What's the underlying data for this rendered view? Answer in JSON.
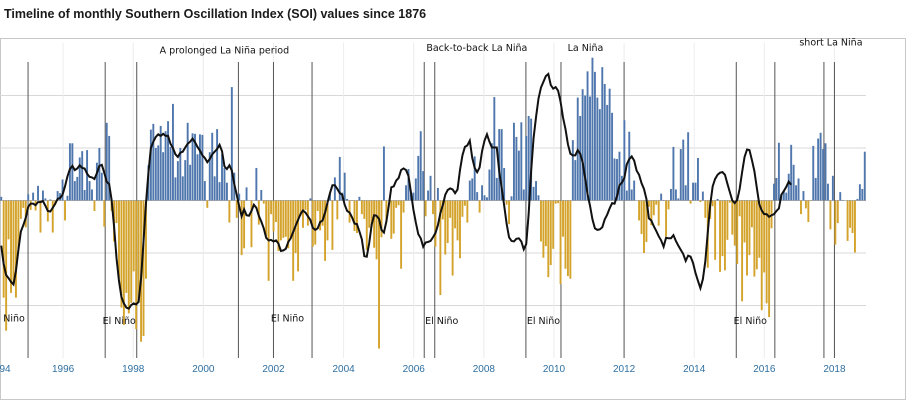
{
  "title": "Timeline of monthly Southern Oscillation Index (SOI) values since 1876",
  "colors": {
    "positive": "#4f77ad",
    "negative": "#d4a32b",
    "line": "#111111",
    "vline": "#555555",
    "grid": "#d8d8d8",
    "tick_text": "#2e6fa1"
  },
  "chart_data": {
    "type": "bar",
    "title": "Timeline of monthly Southern Oscillation Index (SOI) values since 1876",
    "xlabel": "",
    "ylabel": "",
    "xlim": [
      1994.2,
      2018.9
    ],
    "ylim": [
      -30,
      30
    ],
    "grid": true,
    "x_ticks": [
      "1994",
      "1996",
      "1998",
      "2000",
      "2002",
      "2004",
      "2006",
      "2008",
      "2010",
      "2012",
      "2014",
      "2016",
      "2018"
    ],
    "x_tick_labels": [
      "94",
      "1996",
      "1998",
      "2000",
      "2002",
      "2004",
      "2006",
      "2008",
      "2010",
      "2012",
      "2014",
      "2016",
      "2018"
    ],
    "series": [
      {
        "kind": "monthly_bars",
        "values": [
          0.7,
          -18.5,
          -24.8,
          -7.4,
          -17.6,
          -15.9,
          -18.5,
          -9.5,
          -3.5,
          -1.4,
          -5.1,
          1.2,
          -1.8,
          1.5,
          -1.9,
          2.8,
          -6.1,
          1.9,
          0.4,
          -4.0,
          0.2,
          -6.1,
          -0.9,
          1.8,
          1.4,
          4.0,
          -3.8,
          0.9,
          10.9,
          10.9,
          3.7,
          4.5,
          8.2,
          9.4,
          2.0,
          9.6,
          3.7,
          2.1,
          -2.0,
          7.2,
          10.0,
          5.3,
          -5.0,
          14.8,
          12.3,
          -2.0,
          -7.8,
          -4.3,
          -14.8,
          -20.4,
          -23.7,
          -17.6,
          -21.5,
          -19.5,
          -13.5,
          -24.5,
          -19.5,
          -26.9,
          -25.8,
          -14.9,
          6.7,
          13.5,
          14.6,
          10.0,
          10.5,
          14.2,
          9.2,
          13.2,
          15.1,
          10.2,
          18.4,
          4.4,
          7.5,
          10.0,
          4.6,
          7.7,
          14.8,
          6.8,
          12.8,
          12.7,
          8.8,
          12.6,
          12.5,
          3.7,
          -1.4,
          9.2,
          12.9,
          4.6,
          13.6,
          3.5,
          8.8,
          6.2,
          3.4,
          -4.2,
          21.6,
          5.3,
          -3.3,
          1.3,
          -10.4,
          -9.1,
          2.5,
          0.0,
          -8.9,
          0.0,
          6.2,
          -4.6,
          2.0,
          -0.6,
          -6.7,
          -15.3,
          -2.6,
          -5.9,
          -4.1,
          -9.6,
          -7.6,
          -7.1,
          -6.9,
          -9.1,
          -7.0,
          -15.3,
          -10.0,
          -13.5,
          -2.9,
          -5.2,
          -1.8,
          -4.8,
          0.4,
          -8.8,
          -8.4,
          -2.0,
          -5.7,
          -4.8,
          -11.5,
          -7.6,
          1.5,
          -9.4,
          4.4,
          -3.6,
          8.3,
          1.5,
          5.3,
          0.3,
          -4.2,
          -0.1,
          -5.8,
          -6.2,
          0.7,
          -2.6,
          -3.5,
          -9.4,
          -5.2,
          -5.0,
          -9.0,
          -11.2,
          -28.2,
          -7.0,
          10.3,
          -4.1,
          0.0,
          -7.3,
          -6.3,
          -1.4,
          -0.9,
          -13.0,
          -2.3,
          2.9,
          6.0,
          1.6,
          1.5,
          4.2,
          8.5,
          13.2,
          5.6,
          -3.0,
          1.9,
          4.7,
          -2.6,
          -8.8,
          2.4,
          -18.0,
          -3.6,
          -10.3,
          -8.1,
          -3.3,
          -14.3,
          -5.3,
          -7.6,
          -11.0,
          -3.1,
          -1.0,
          -4.2,
          3.8,
          4.2,
          8.4,
          1.6,
          -2.3,
          2.9,
          1.0,
          0.6,
          5.9,
          10.9,
          19.7,
          4.3,
          13.6,
          13.6,
          6.2,
          -0.8,
          -4.5,
          0.8,
          14.8,
          12.1,
          9.5,
          14.9,
          2.1,
          12.3,
          16.1,
          15.6,
          2.6,
          3.7,
          1.0,
          -7.8,
          -10.9,
          -8.7,
          -14.6,
          -12.3,
          -9.2,
          -0.6,
          -0.5,
          -15.9,
          -6.9,
          -13.0,
          -14.4,
          -14.9,
          11.5,
          7.7,
          19.6,
          16.1,
          21.2,
          20.0,
          24.6,
          19.8,
          27.2,
          24.5,
          19.6,
          17.4,
          25.4,
          22.2,
          18.2,
          21.3,
          16.7,
          8.0,
          7.9,
          9.3,
          4.7,
          15.3,
          1.9,
          13.1,
          2.1,
          3.8,
          0.0,
          -3.8,
          -6.4,
          -10.0,
          -7.9,
          -1.2,
          -4.7,
          -2.8,
          -0.8,
          -4.8,
          1.3,
          0.1,
          -6.9,
          -1.7,
          2.2,
          10.2,
          2.1,
          0.4,
          9.8,
          11.6,
          2.9,
          13.0,
          -0.6,
          3.4,
          3.4,
          8.1,
          -0.3,
          1.7,
          -3.3,
          -12.8,
          -3.5,
          -1.1,
          -11.3,
          0.3,
          -13.6,
          -10.6,
          -13.3,
          -7.5,
          -0.4,
          -6.5,
          -8.6,
          -12.1,
          -3.0,
          -19.2,
          -8.0,
          -14.3,
          -10.4,
          -5.1,
          -14.5,
          -13.1,
          -10.9,
          -20.9,
          -13.7,
          -19.6,
          -22.2,
          -5.3,
          3.2,
          4.3,
          11.0,
          1.1,
          1.8,
          1.5,
          5.1,
          10.6,
          6.8,
          2.9,
          4.2,
          -2.6,
          1.8,
          -1.5,
          -4.1,
          -0.1,
          10.4,
          4.3,
          11.8,
          12.9,
          9.8,
          10.9,
          3.2,
          -5.5,
          4.7,
          -8.4,
          -4.3,
          1.6,
          0.1,
          0.0,
          -7.7,
          -5.2,
          -6.2,
          -9.9,
          0.3,
          3.1,
          2.2,
          9.3
        ]
      },
      {
        "kind": "smoothed_line",
        "values": [
          -8.6,
          -12.1,
          -14.2,
          -14.8,
          -15.5,
          -16.0,
          -13.4,
          -9.4,
          -5.9,
          -4.7,
          -3.3,
          -1.2,
          -0.6,
          -0.6,
          -0.9,
          -0.3,
          -0.3,
          -0.1,
          -1.0,
          -2.0,
          -2.1,
          -1.4,
          -0.6,
          0.3,
          0.5,
          1.1,
          2.7,
          4.6,
          6.0,
          6.6,
          5.8,
          6.1,
          6.7,
          6.2,
          6.1,
          5.1,
          4.5,
          4.4,
          4.1,
          5.2,
          6.6,
          6.8,
          5.3,
          3.6,
          3.1,
          0.1,
          -5.0,
          -11.0,
          -15.3,
          -18.4,
          -19.6,
          -20.4,
          -20.6,
          -19.9,
          -19.6,
          -19.8,
          -19.3,
          -14.8,
          -7.8,
          -0.6,
          5.3,
          10.0,
          11.2,
          12.1,
          12.6,
          12.3,
          12.7,
          12.3,
          12.3,
          10.8,
          10.0,
          8.8,
          8.3,
          9.1,
          9.3,
          10.1,
          10.8,
          11.2,
          11.8,
          11.1,
          10.2,
          9.5,
          8.6,
          8.1,
          7.3,
          7.9,
          8.8,
          9.3,
          9.8,
          10.6,
          9.4,
          6.5,
          6.0,
          6.7,
          5.7,
          3.1,
          1.1,
          -1.1,
          -3.0,
          -1.7,
          -2.8,
          -2.9,
          -2.0,
          -0.8,
          -1.4,
          -2.9,
          -4.0,
          -5.3,
          -7.1,
          -7.6,
          -7.5,
          -7.8,
          -7.6,
          -8.2,
          -9.6,
          -9.5,
          -9.2,
          -7.9,
          -7.2,
          -6.0,
          -4.8,
          -3.7,
          -2.6,
          -1.9,
          -2.3,
          -3.0,
          -3.7,
          -5.2,
          -5.6,
          -5.3,
          -4.1,
          -3.8,
          -2.3,
          -0.4,
          1.4,
          2.9,
          2.9,
          2.2,
          1.4,
          1.1,
          -0.8,
          -2.0,
          -2.3,
          -3.2,
          -4.4,
          -4.5,
          -5.9,
          -7.4,
          -10.6,
          -10.7,
          -8.1,
          -4.6,
          -2.8,
          -2.9,
          -3.5,
          -5.6,
          -6.1,
          -4.0,
          -0.9,
          2.5,
          2.7,
          3.8,
          4.3,
          5.8,
          6.1,
          5.8,
          4.7,
          1.6,
          -1.7,
          -4.2,
          -6.4,
          -7.2,
          -8.8,
          -8.0,
          -7.9,
          -7.7,
          -7.0,
          -6.2,
          -4.7,
          -2.4,
          -0.9,
          1.1,
          2.0,
          2.3,
          2.1,
          1.4,
          2.1,
          5.8,
          8.6,
          10.2,
          10.5,
          11.4,
          8.1,
          6.2,
          5.4,
          6.3,
          9.4,
          11.4,
          12.6,
          11.2,
          10.1,
          10.1,
          10.1,
          5.5,
          2.4,
          -0.9,
          -4.4,
          -7.0,
          -7.7,
          -7.8,
          -7.3,
          -7.2,
          -7.8,
          -9.3,
          -8.3,
          -2.5,
          5.6,
          11.9,
          15.9,
          19.4,
          21.5,
          22.6,
          23.7,
          24.1,
          22.0,
          21.3,
          21.6,
          20.9,
          18.8,
          15.8,
          13.6,
          10.7,
          8.9,
          8.6,
          8.6,
          9.6,
          8.9,
          7.3,
          4.3,
          1.2,
          -1.0,
          -3.6,
          -5.3,
          -5.6,
          -5.5,
          -5.1,
          -3.6,
          -2.7,
          -1.5,
          -0.5,
          -0.6,
          0.8,
          2.9,
          3.4,
          4.3,
          6.9,
          7.9,
          8.4,
          7.6,
          5.7,
          4.9,
          3.3,
          2.2,
          0.3,
          -3.4,
          -3.8,
          -4.9,
          -5.8,
          -6.8,
          -7.6,
          -8.8,
          -7.1,
          -7.2,
          -7.2,
          -6.6,
          -7.7,
          -8.6,
          -9.4,
          -10.2,
          -11.5,
          -10.5,
          -10.7,
          -11.9,
          -13.8,
          -15.3,
          -16.7,
          -15.0,
          -11.6,
          -6.1,
          -0.8,
          2.7,
          4.1,
          4.9,
          5.3,
          5.4,
          4.9,
          3.2,
          1.6,
          0.0,
          -0.5,
          0.1,
          2.2,
          5.4,
          8.3,
          9.7,
          9.6,
          7.7,
          5.6,
          2.4,
          -0.7,
          -1.9,
          -2.6,
          -2.6,
          -3.1,
          -2.8,
          -2.6,
          -2.0,
          -1.5,
          1.1,
          1.8,
          2.6,
          3.6,
          3.0
        ]
      }
    ],
    "vertical_markers": [
      1995.0,
      1997.2,
      1998.1,
      2001.0,
      2002.0,
      2003.1,
      2006.3,
      2006.6,
      2009.2,
      2010.2,
      2012.0,
      2015.2,
      2016.3,
      2017.7,
      2018.0
    ],
    "annotations": [
      {
        "text": "A prolonged La Niña period",
        "x": 2000.6,
        "y": 28
      },
      {
        "text": "Back-to-back La Niña",
        "x": 2007.8,
        "y": 28.5
      },
      {
        "text": "La Niña",
        "x": 2010.9,
        "y": 28.5
      },
      {
        "text": "short La Niña",
        "x": 2017.9,
        "y": 29.5
      },
      {
        "text": "Niño",
        "x": 1994.6,
        "y": -23
      },
      {
        "text": "El Niño",
        "x": 1997.6,
        "y": -23.5
      },
      {
        "text": "El Niño",
        "x": 2002.4,
        "y": -23
      },
      {
        "text": "El Niño",
        "x": 2006.8,
        "y": -23.5
      },
      {
        "text": "El Niño",
        "x": 2009.7,
        "y": -23.5
      },
      {
        "text": "El Niño",
        "x": 2015.6,
        "y": -23.5
      }
    ]
  }
}
